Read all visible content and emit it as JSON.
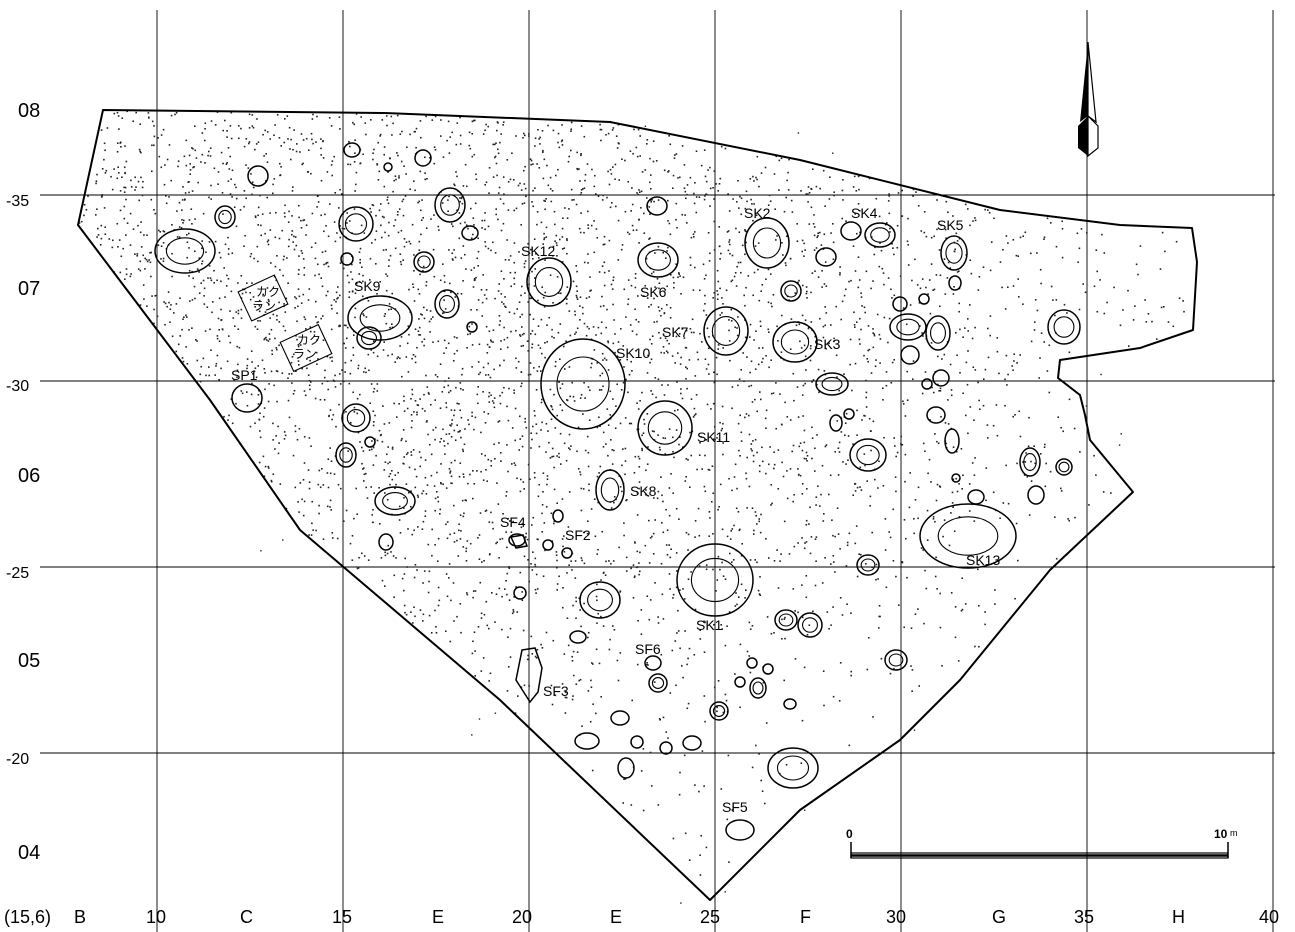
{
  "map": {
    "row_labels": [
      {
        "text": "08",
        "major": true
      },
      {
        "text": "-35",
        "major": false
      },
      {
        "text": "07",
        "major": true
      },
      {
        "text": "-30",
        "major": false
      },
      {
        "text": "06",
        "major": true
      },
      {
        "text": "-25",
        "major": false
      },
      {
        "text": "05",
        "major": true
      },
      {
        "text": "-20",
        "major": false
      },
      {
        "text": "04",
        "major": true
      }
    ],
    "column_labels": [
      "(15,6)",
      "B",
      "10",
      "C",
      "15",
      "E",
      "20",
      "E",
      "25",
      "F",
      "30",
      "G",
      "35",
      "H",
      "40"
    ],
    "features": [
      {
        "id": "SK1",
        "label": "SK1"
      },
      {
        "id": "SK2",
        "label": "SK2"
      },
      {
        "id": "SK3",
        "label": "SK3"
      },
      {
        "id": "SK4",
        "label": "SK4"
      },
      {
        "id": "SK5",
        "label": "SK5"
      },
      {
        "id": "SK6",
        "label": "SK6"
      },
      {
        "id": "SK7",
        "label": "SK7"
      },
      {
        "id": "SK8",
        "label": "SK8"
      },
      {
        "id": "SK9",
        "label": "SK9"
      },
      {
        "id": "SK10",
        "label": "SK10"
      },
      {
        "id": "SK11",
        "label": "SK11"
      },
      {
        "id": "SK12",
        "label": "SK12"
      },
      {
        "id": "SK13",
        "label": "SK13"
      },
      {
        "id": "SP1",
        "label": "SP1"
      },
      {
        "id": "SF2",
        "label": "SF2"
      },
      {
        "id": "SF3",
        "label": "SF3"
      },
      {
        "id": "SF4",
        "label": "SF4"
      },
      {
        "id": "SF5",
        "label": "SF5"
      },
      {
        "id": "SF6",
        "label": "SF6"
      }
    ],
    "disturbances": [
      {
        "line1": "カク",
        "line2": "ラン"
      },
      {
        "line1": "カク",
        "line2": "ラン"
      }
    ],
    "scale_bar": {
      "start": "0",
      "end": "10",
      "unit": "m"
    },
    "north_arrow": "north-arrow-icon"
  }
}
